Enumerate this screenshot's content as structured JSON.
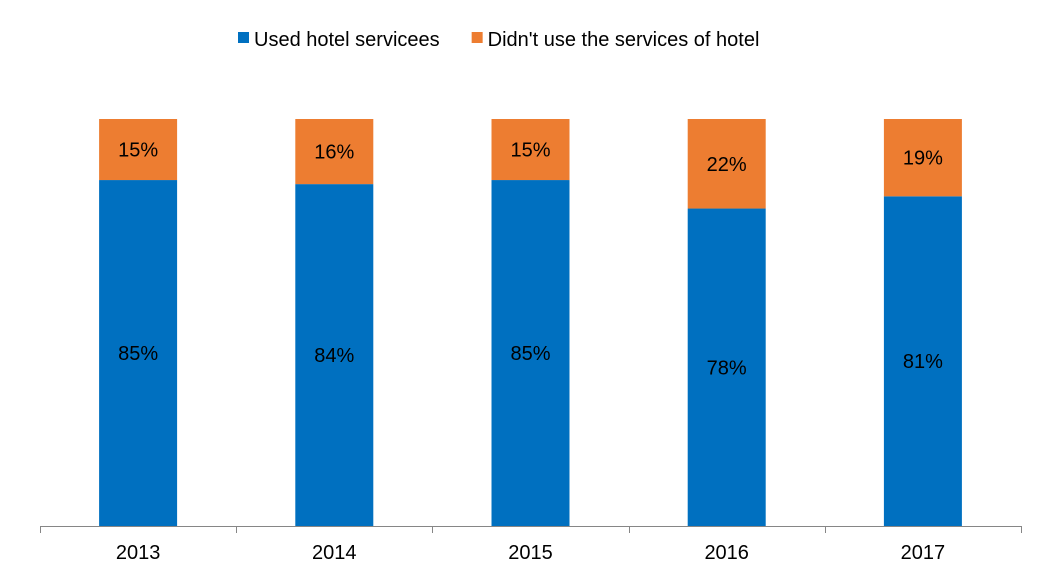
{
  "chart_data": {
    "type": "bar",
    "stacked": true,
    "percent_stacked": true,
    "categories": [
      "2013",
      "2014",
      "2015",
      "2016",
      "2017"
    ],
    "series": [
      {
        "name": "Used hotel servicees",
        "color": "#0070C0",
        "values": [
          85,
          84,
          85,
          78,
          81
        ],
        "labels": [
          "85%",
          "84%",
          "85%",
          "78%",
          "81%"
        ]
      },
      {
        "name": "Didn't use the services of hotel",
        "color": "#ED7D31",
        "values": [
          15,
          16,
          15,
          22,
          19
        ],
        "labels": [
          "15%",
          "16%",
          "15%",
          "22%",
          "19%"
        ]
      }
    ],
    "ylim": [
      0,
      100
    ],
    "grid": false,
    "legend_position": "top"
  }
}
